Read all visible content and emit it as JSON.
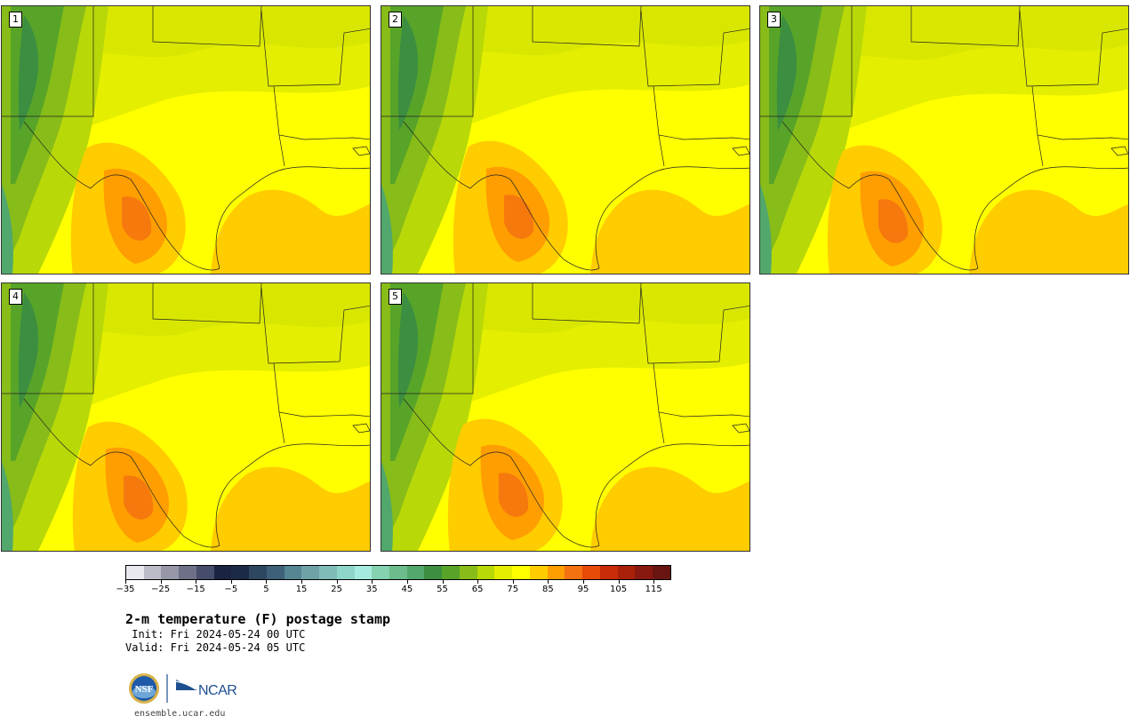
{
  "panels": [
    {
      "label": "1"
    },
    {
      "label": "2"
    },
    {
      "label": "3"
    },
    {
      "label": "4"
    },
    {
      "label": "5"
    }
  ],
  "colorbar": {
    "colors": [
      "#e8e8ee",
      "#bcbcc8",
      "#9698a8",
      "#6d7086",
      "#454d6a",
      "#1a2340",
      "#1c2a48",
      "#2e4760",
      "#3e6078",
      "#568592",
      "#6fa2a6",
      "#7fbcb8",
      "#8ed6c8",
      "#a6ecde",
      "#84d2b0",
      "#6cbc8c",
      "#52a86c",
      "#3c8e40",
      "#58a428",
      "#88bc18",
      "#b8d808",
      "#e4ee00",
      "#ffff00",
      "#ffcc00",
      "#ff9e00",
      "#f47210",
      "#e84a08",
      "#c82c08",
      "#a82008",
      "#881810",
      "#681410"
    ],
    "tick_labels": [
      "−35",
      "−25",
      "−15",
      "−5",
      "5",
      "15",
      "25",
      "35",
      "45",
      "55",
      "65",
      "75",
      "85",
      "95",
      "105",
      "115"
    ]
  },
  "title": "2-m temperature (F) postage stamp",
  "init": " Init: Fri 2024-05-24 00 UTC",
  "valid": "Valid: Fri 2024-05-24 05 UTC",
  "logos": {
    "nsf": "NSF",
    "ncar": "NCAR"
  },
  "url": "ensemble.ucar.edu"
}
